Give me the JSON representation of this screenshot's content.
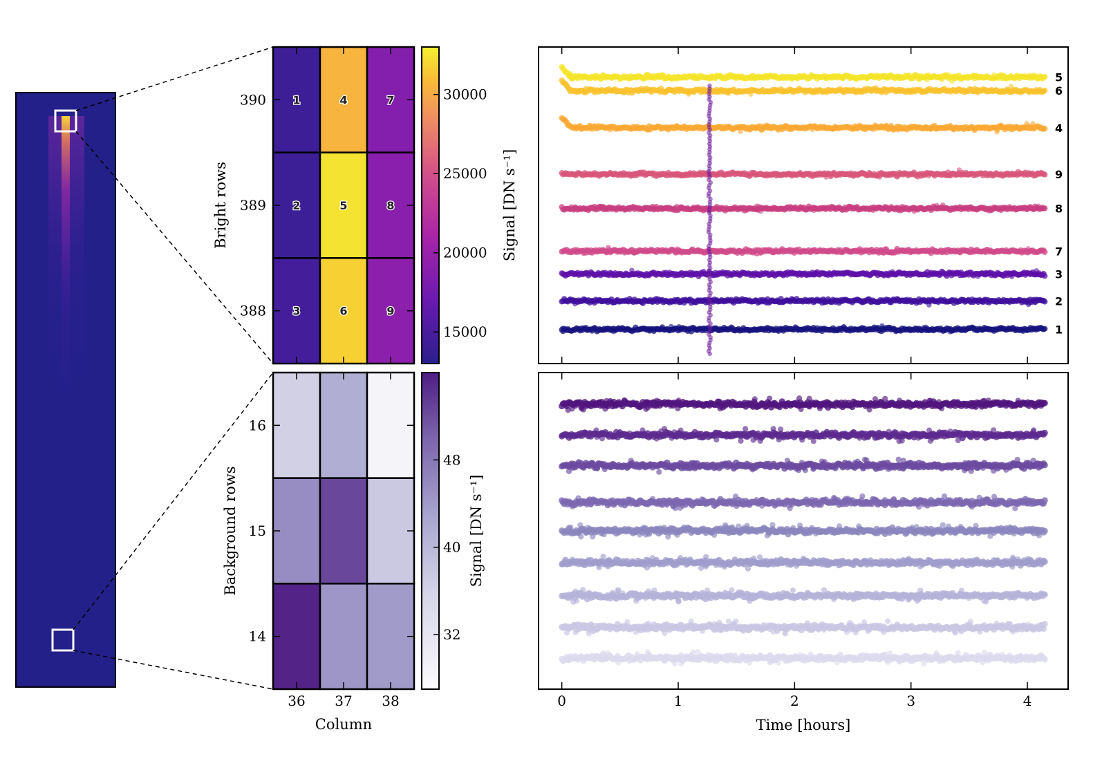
{
  "chart_data": [
    {
      "type": "heatmap",
      "name": "detector-overview",
      "colormap": "plasma",
      "title": "",
      "xlabel": "",
      "ylabel": ""
    },
    {
      "type": "heatmap",
      "name": "bright-rows",
      "colormap": "plasma",
      "ylabel": "Bright rows",
      "xlabel": "",
      "rows": [
        "390",
        "389",
        "388"
      ],
      "columns": [
        "36",
        "37",
        "38"
      ],
      "pixel_ids": [
        [
          "1",
          "4",
          "7"
        ],
        [
          "2",
          "5",
          "8"
        ],
        [
          "3",
          "6",
          "9"
        ]
      ],
      "values": [
        [
          14200,
          30500,
          18600
        ],
        [
          14100,
          32500,
          19000
        ],
        [
          14600,
          31800,
          19200
        ]
      ],
      "colorbar": {
        "label": "Signal [DN s⁻¹]",
        "range": [
          13000,
          33000
        ],
        "ticks": [
          15000,
          20000,
          25000,
          30000
        ],
        "tick_labels": [
          "15000",
          "20000",
          "25000",
          "30000"
        ]
      }
    },
    {
      "type": "heatmap",
      "name": "background-rows",
      "colormap": "purples",
      "ylabel": "Background rows",
      "xlabel": "Column",
      "rows": [
        "16",
        "15",
        "14"
      ],
      "columns": [
        "36",
        "37",
        "38"
      ],
      "values": [
        [
          36.5,
          41.5,
          28.5
        ],
        [
          45.5,
          52.5,
          37.5
        ],
        [
          55.5,
          44.5,
          44.0
        ]
      ],
      "colorbar": {
        "label": "Signal [DN s⁻¹]",
        "range": [
          27,
          56
        ],
        "ticks": [
          32,
          40,
          48
        ],
        "tick_labels": [
          "32",
          "40",
          "48"
        ]
      }
    },
    {
      "type": "scatter",
      "name": "bright-lightcurves",
      "xlabel": "",
      "ylabel": "Signal [DN s⁻¹]",
      "xlim": [
        -0.2,
        4.35
      ],
      "series": [
        {
          "name": "5",
          "offset_level": 0.905,
          "color": "#f4e42a"
        },
        {
          "name": "6",
          "offset_level": 0.862,
          "color": "#f8c22d"
        },
        {
          "name": "4",
          "offset_level": 0.745,
          "color": "#faa832"
        },
        {
          "name": "9",
          "offset_level": 0.598,
          "color": "#d8557a"
        },
        {
          "name": "8",
          "offset_level": 0.49,
          "color": "#c83e80"
        },
        {
          "name": "7",
          "offset_level": 0.355,
          "color": "#d04a8a"
        },
        {
          "name": "3",
          "offset_level": 0.283,
          "color": "#5e10a8"
        },
        {
          "name": "2",
          "offset_level": 0.198,
          "color": "#3e0f9c"
        },
        {
          "name": "1",
          "offset_level": 0.108,
          "color": "#16127e"
        }
      ],
      "event_time": 1.27
    },
    {
      "type": "scatter",
      "name": "background-lightcurves",
      "xlabel": "Time [hours]",
      "ylabel": "",
      "xlim": [
        -0.2,
        4.35
      ],
      "x_ticks": [
        0,
        1,
        2,
        3,
        4
      ],
      "x_tick_labels": [
        "0",
        "1",
        "2",
        "3",
        "4"
      ],
      "series": [
        {
          "offset_level": 0.9,
          "color": "#51157e"
        },
        {
          "offset_level": 0.803,
          "color": "#5d2a8e"
        },
        {
          "offset_level": 0.706,
          "color": "#6b4aa0"
        },
        {
          "offset_level": 0.59,
          "color": "#7c68b0"
        },
        {
          "offset_level": 0.5,
          "color": "#8c86be"
        },
        {
          "offset_level": 0.4,
          "color": "#a09ccc"
        },
        {
          "offset_level": 0.295,
          "color": "#b5b3d8"
        },
        {
          "offset_level": 0.195,
          "color": "#c9c7e3"
        },
        {
          "offset_level": 0.098,
          "color": "#dcdbed"
        }
      ]
    }
  ]
}
